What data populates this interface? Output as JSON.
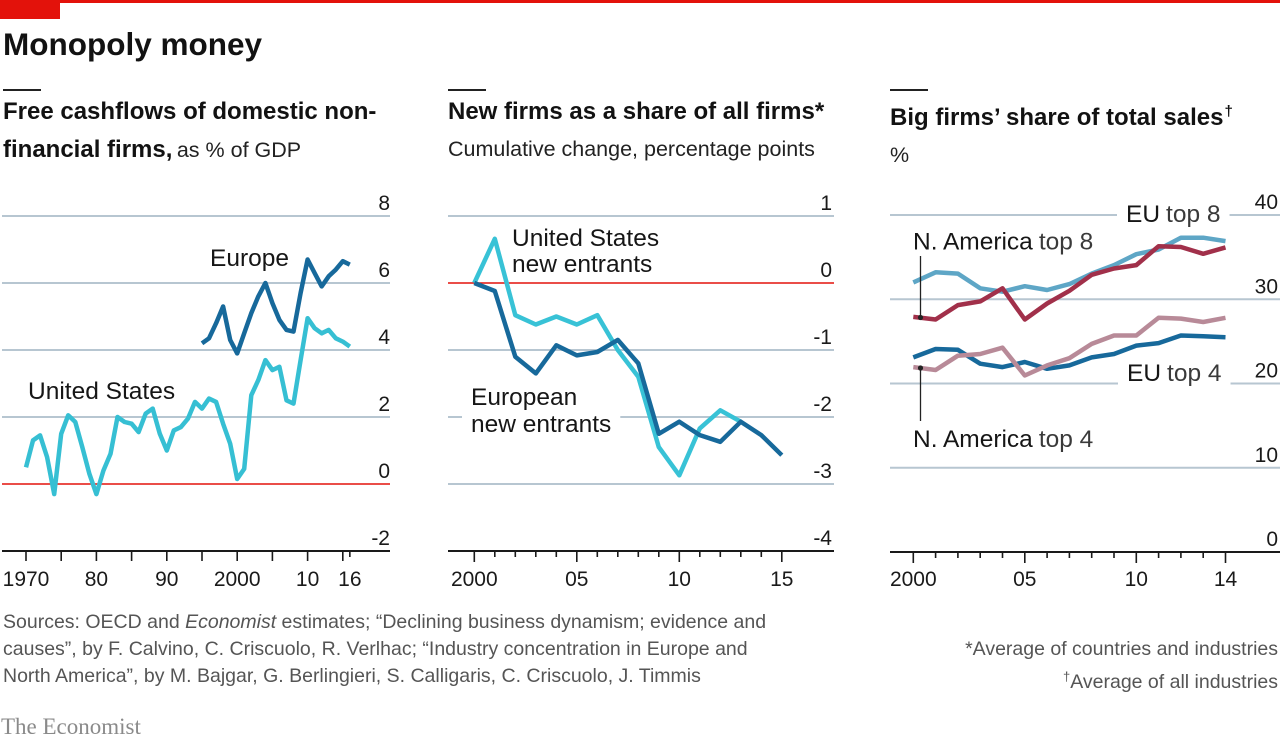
{
  "header": {
    "title": "Monopoly money"
  },
  "colors": {
    "brand_red": "#e3120b",
    "gridline": "#b7c6d1",
    "zero_line": "#e3120b",
    "axis": "#1a1a1a"
  },
  "chart_data": [
    {
      "id": "free-cashflows",
      "type": "line",
      "title": "Free cashflows of domestic non-financial firms,",
      "subtitle": "as % of GDP",
      "xlabel": "",
      "ylabel": "",
      "xlim": [
        1970,
        2016
      ],
      "ylim": [
        -2,
        8
      ],
      "grid": true,
      "y_ticks": [
        8,
        6,
        4,
        2,
        0,
        -2
      ],
      "x_ticks": [
        1970,
        1975,
        1980,
        1985,
        1990,
        1995,
        2000,
        2005,
        2010,
        2015,
        2016
      ],
      "x_major_ticks": [
        1970,
        1975,
        1980,
        1985,
        1990,
        1995,
        2000,
        2005,
        2010,
        2015
      ],
      "x_tick_labels": [
        {
          "value": 1970,
          "label": "1970"
        },
        {
          "value": 1980,
          "label": "80"
        },
        {
          "value": 1990,
          "label": "90"
        },
        {
          "value": 2000,
          "label": "2000"
        },
        {
          "value": 2010,
          "label": "10"
        },
        {
          "value": 2016,
          "label": "16"
        }
      ],
      "series": [
        {
          "id": "europe",
          "name": "Europe",
          "label": "Europe",
          "color": "#17699b",
          "start_year": 1995,
          "values": [
            4.2,
            4.35,
            4.8,
            5.3,
            4.3,
            3.9,
            4.5,
            5.1,
            5.6,
            6.0,
            5.4,
            4.9,
            4.6,
            4.55,
            5.7,
            6.7,
            6.3,
            5.9,
            6.2,
            6.4,
            6.65,
            6.55
          ]
        },
        {
          "id": "united-states",
          "name": "United States",
          "label": "United States",
          "color": "#36bfd3",
          "start_year": 1970,
          "values": [
            0.5,
            1.3,
            1.45,
            0.8,
            -0.3,
            1.5,
            2.05,
            1.85,
            1.1,
            0.3,
            -0.3,
            0.4,
            0.9,
            2.0,
            1.85,
            1.8,
            1.55,
            2.1,
            2.25,
            1.5,
            1.0,
            1.6,
            1.7,
            1.95,
            2.45,
            2.25,
            2.55,
            2.45,
            1.8,
            1.2,
            0.15,
            0.45,
            2.65,
            3.1,
            3.7,
            3.4,
            3.5,
            2.5,
            2.4,
            3.7,
            4.95,
            4.65,
            4.5,
            4.6,
            4.35,
            4.25,
            4.1
          ]
        }
      ]
    },
    {
      "id": "new-firms",
      "type": "line",
      "title": "New firms as a share of all firms*",
      "subtitle": "Cumulative change, percentage points",
      "xlabel": "",
      "ylabel": "",
      "xlim": [
        2000,
        2015
      ],
      "ylim": [
        -4,
        1
      ],
      "grid": true,
      "y_ticks": [
        1,
        0,
        -1,
        -2,
        -3,
        -4
      ],
      "x_ticks": [
        2000,
        2001,
        2002,
        2003,
        2004,
        2005,
        2006,
        2007,
        2008,
        2009,
        2010,
        2011,
        2012,
        2013,
        2014,
        2015
      ],
      "x_major_ticks": [
        2000,
        2005,
        2010,
        2015
      ],
      "x_tick_labels": [
        {
          "value": 2000,
          "label": "2000"
        },
        {
          "value": 2005,
          "label": "05"
        },
        {
          "value": 2010,
          "label": "10"
        },
        {
          "value": 2015,
          "label": "15"
        }
      ],
      "series": [
        {
          "id": "us-new-entrants",
          "name": "United States new entrants",
          "label_lines": [
            "United States",
            "new entrants"
          ],
          "color": "#38c2d6",
          "start_year": 2000,
          "values": [
            0.0,
            0.66,
            -0.48,
            -0.62,
            -0.5,
            -0.62,
            -0.48,
            -1.0,
            -1.4,
            -2.45,
            -2.87,
            -2.17,
            -1.9,
            -2.07
          ]
        },
        {
          "id": "european-new-entrants",
          "name": "European new entrants",
          "label_lines": [
            "European",
            "new entrants"
          ],
          "color": "#17699b",
          "start_year": 2000,
          "values": [
            0.0,
            -0.12,
            -1.1,
            -1.35,
            -0.93,
            -1.08,
            -1.03,
            -0.85,
            -1.2,
            -2.25,
            -2.07,
            -2.27,
            -2.37,
            -2.07,
            -2.27,
            -2.57
          ]
        }
      ]
    },
    {
      "id": "big-firms-share",
      "type": "line",
      "title": "Big firms’ share of total sales",
      "title_mark": "†",
      "subtitle": "%",
      "xlabel": "",
      "ylabel": "",
      "xlim": [
        2000,
        2014
      ],
      "ylim": [
        0,
        40
      ],
      "grid": true,
      "y_ticks": [
        40,
        30,
        20,
        10,
        0
      ],
      "x_ticks": [
        2000,
        2001,
        2002,
        2003,
        2004,
        2005,
        2006,
        2007,
        2008,
        2009,
        2010,
        2011,
        2012,
        2013,
        2014
      ],
      "x_major_ticks": [
        2000,
        2005,
        2010,
        2014
      ],
      "x_tick_labels": [
        {
          "value": 2000,
          "label": "2000"
        },
        {
          "value": 2005,
          "label": "05"
        },
        {
          "value": 2010,
          "label": "10"
        },
        {
          "value": 2014,
          "label": "14"
        }
      ],
      "series": [
        {
          "id": "eu-top-8",
          "name": "EU top 8",
          "label_main": "EU",
          "label_sub": "top 8",
          "color": "#5ea6c6",
          "start_year": 2000,
          "values": [
            32.0,
            33.2,
            33.05,
            31.3,
            30.9,
            31.55,
            31.1,
            31.8,
            33.05,
            34.05,
            35.35,
            35.9,
            37.3,
            37.3,
            36.9
          ]
        },
        {
          "id": "eu-top-4",
          "name": "EU top 4",
          "label_main": "EU",
          "label_sub": "top 4",
          "color": "#17699b",
          "start_year": 2000,
          "values": [
            23.1,
            24.1,
            24.0,
            22.35,
            21.95,
            22.55,
            21.75,
            22.15,
            23.1,
            23.5,
            24.5,
            24.8,
            25.7,
            25.6,
            25.5
          ]
        },
        {
          "id": "na-top-8",
          "name": "N. America top 8",
          "label_main": "N. America",
          "label_sub": "top 8",
          "color": "#a1304a",
          "start_year": 2000,
          "values": [
            27.9,
            27.6,
            29.3,
            29.75,
            31.3,
            27.6,
            29.5,
            31.0,
            32.9,
            33.65,
            34.05,
            36.3,
            36.2,
            35.4,
            36.15
          ]
        },
        {
          "id": "na-top-4",
          "name": "N. America top 4",
          "label_main": "N. America",
          "label_sub": "top 4",
          "color": "#b88a98",
          "start_year": 2000,
          "values": [
            21.95,
            21.6,
            23.3,
            23.5,
            24.25,
            20.95,
            22.15,
            23.0,
            24.7,
            25.7,
            25.7,
            27.8,
            27.7,
            27.3,
            27.8
          ]
        }
      ]
    }
  ],
  "footer": {
    "sources": {
      "prefix": "Sources: OECD and ",
      "italic": "Economist",
      "line1_rest": " estimates; “Declining business dynamism; evidence and",
      "line2": "causes”, by F. Calvino, C. Criscuolo, R. Verlhac; “Industry concentration in Europe and",
      "line3": "North America”, by M. Bajgar, G. Berlingieri, S. Calligaris, C. Criscuolo, J. Timmis"
    },
    "notes": [
      {
        "mark": "*",
        "text": "Average of countries and industries"
      },
      {
        "mark": "†",
        "text": "Average of all industries"
      }
    ],
    "brand": "The Economist"
  }
}
